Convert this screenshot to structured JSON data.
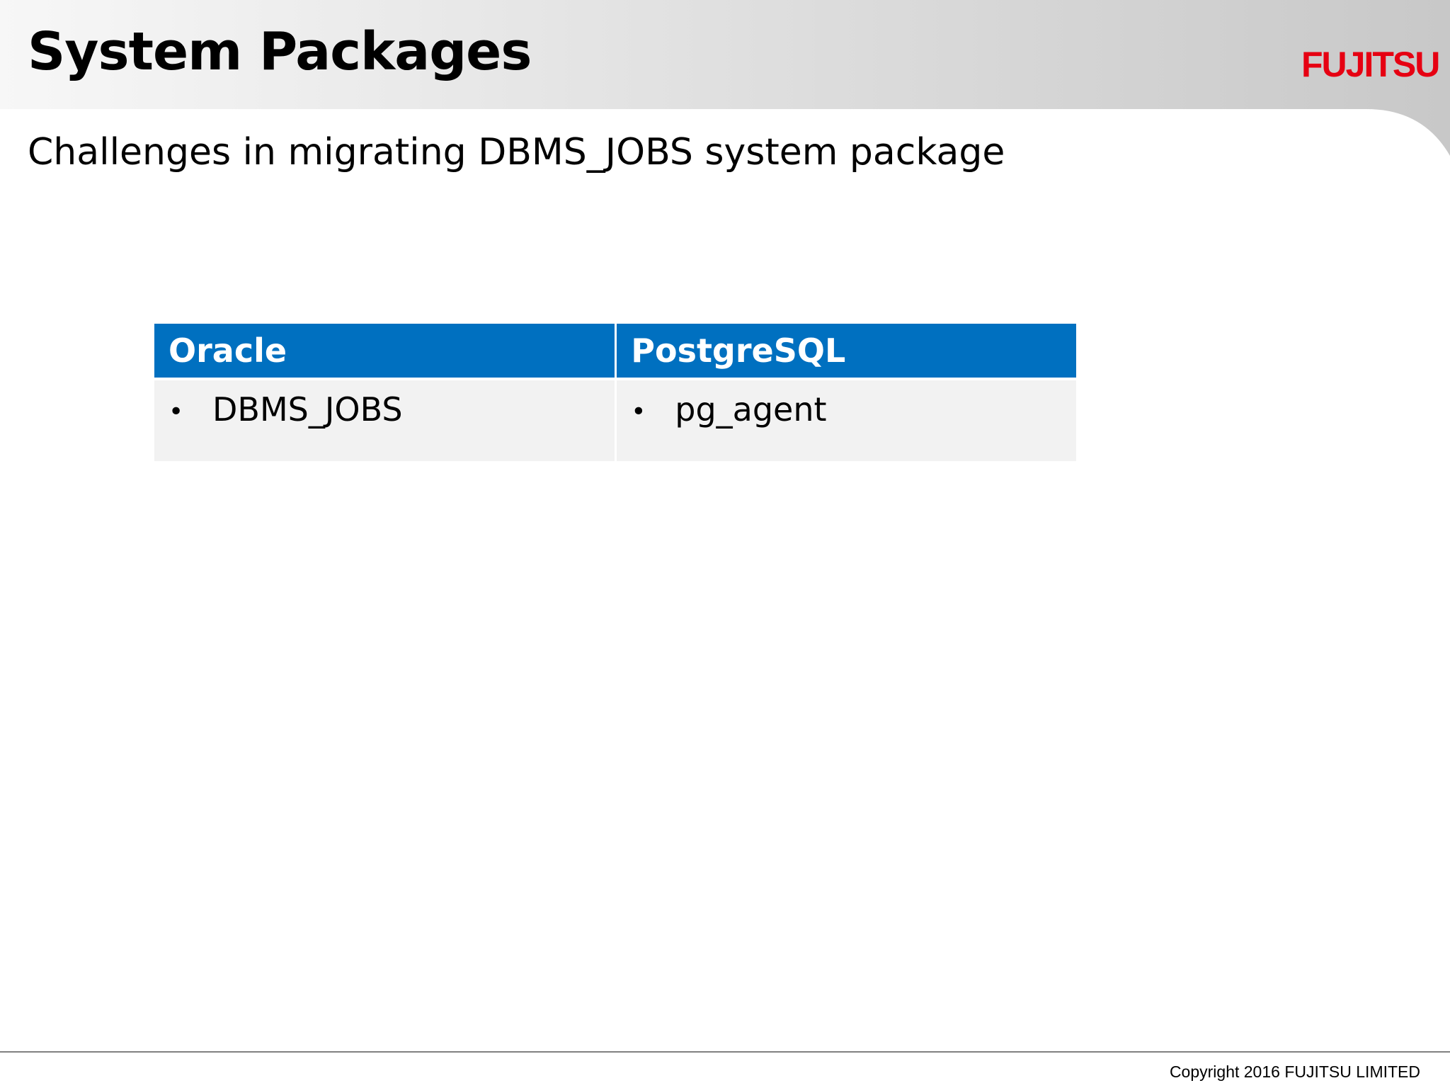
{
  "header": {
    "title": "System Packages",
    "subtitle": "Challenges in migrating DBMS_JOBS system package",
    "logo": "FUJITSU"
  },
  "table": {
    "columns": [
      "Oracle",
      "PostgreSQL"
    ],
    "rows": [
      [
        "DBMS_JOBS",
        "pg_agent"
      ]
    ]
  },
  "footer": {
    "copyright": "Copyright 2016 FUJITSU LIMITED"
  }
}
